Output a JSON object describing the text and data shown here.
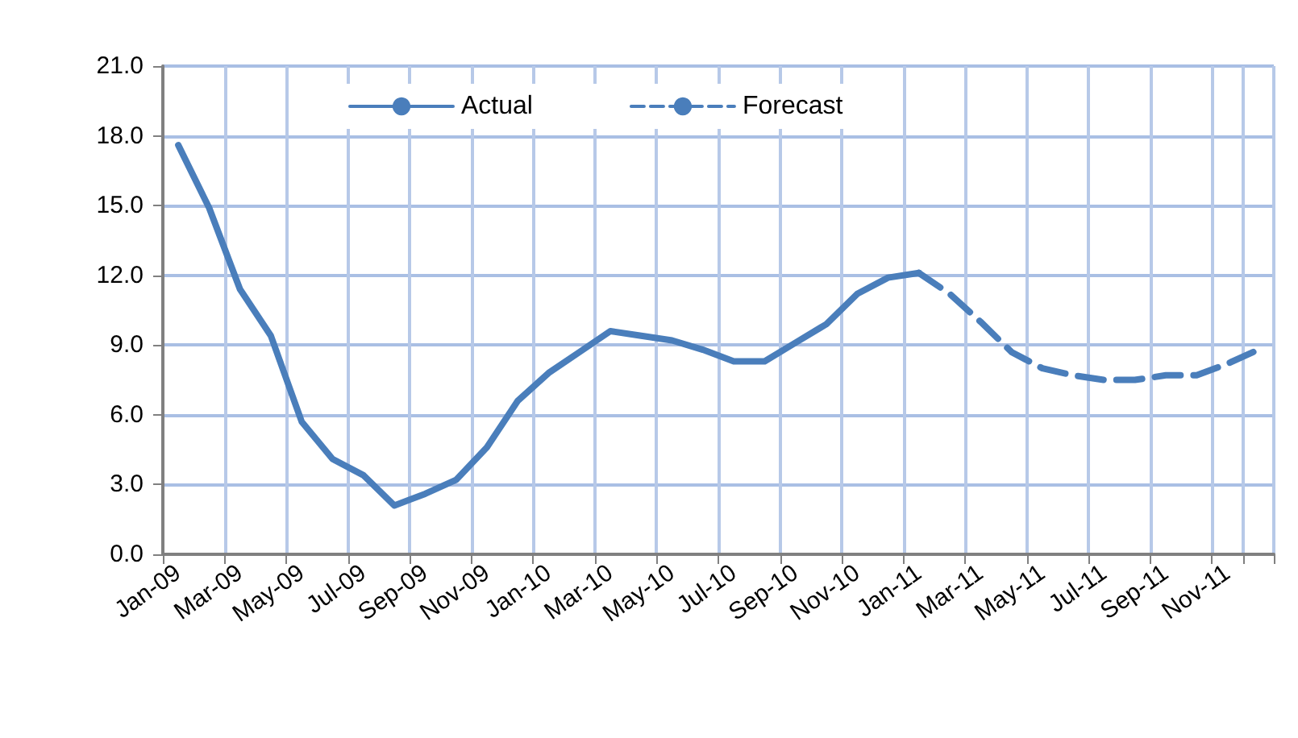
{
  "chart_data": {
    "type": "line",
    "categories": [
      "Jan-09",
      null,
      "Mar-09",
      null,
      "May-09",
      null,
      "Jul-09",
      null,
      "Sep-09",
      null,
      "Nov-09",
      null,
      "Jan-10",
      null,
      "Mar-10",
      null,
      "May-10",
      null,
      "Jul-10",
      null,
      "Sep-10",
      null,
      "Nov-10",
      null,
      "Jan-11",
      null,
      "Mar-11",
      null,
      "May-11",
      null,
      "Jul-11",
      null,
      "Sep-11",
      null,
      "Nov-11",
      null
    ],
    "series": [
      {
        "name": "Actual",
        "color": "#4a7ebb",
        "line_style": "solid",
        "values": [
          17.6,
          14.9,
          11.4,
          9.4,
          5.7,
          4.1,
          3.4,
          2.1,
          2.6,
          3.2,
          4.6,
          6.6,
          7.8,
          8.7,
          9.6,
          9.4,
          9.2,
          8.8,
          8.3,
          8.3,
          9.1,
          9.9,
          11.2,
          11.9,
          12.1,
          null,
          null,
          null,
          null,
          null,
          null,
          null,
          null,
          null,
          null,
          null
        ]
      },
      {
        "name": "Forecast",
        "color": "#4a7ebb",
        "line_style": "dashed",
        "values": [
          null,
          null,
          null,
          null,
          null,
          null,
          null,
          null,
          null,
          null,
          null,
          null,
          null,
          null,
          null,
          null,
          null,
          null,
          null,
          null,
          null,
          null,
          null,
          null,
          12.1,
          11.2,
          10.0,
          8.7,
          8.0,
          7.7,
          7.5,
          7.5,
          7.7,
          7.7,
          8.2,
          8.8
        ]
      }
    ],
    "ylim": [
      0,
      21
    ],
    "yticks": [
      {
        "value": 0,
        "label": "0.0"
      },
      {
        "value": 3,
        "label": "3.0"
      },
      {
        "value": 6,
        "label": "6.0"
      },
      {
        "value": 9,
        "label": "9.0"
      },
      {
        "value": 12,
        "label": "12.0"
      },
      {
        "value": 15,
        "label": "15.0"
      },
      {
        "value": 18,
        "label": "18.0"
      },
      {
        "value": 21,
        "label": "21.0"
      }
    ],
    "grid": true,
    "legend": "top",
    "marker": "none"
  }
}
